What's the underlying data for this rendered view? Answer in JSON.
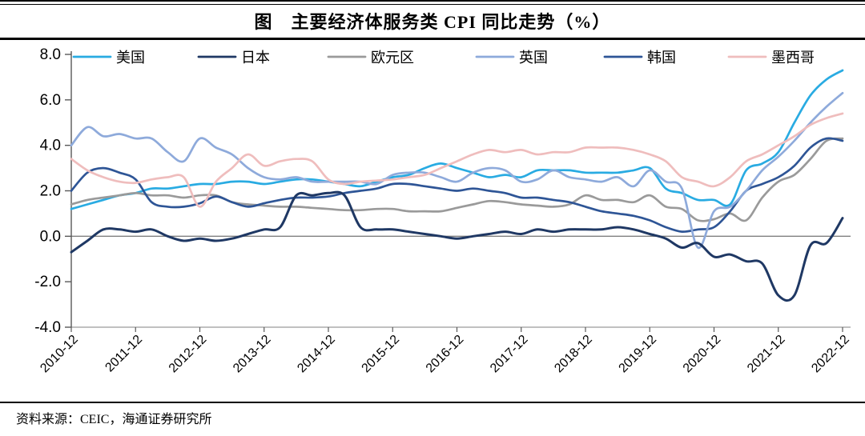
{
  "header": {
    "title": "图　主要经济体服务类 CPI 同比走势（%）"
  },
  "footer": {
    "source_label": "资料来源：CEIC，海通证券研究所"
  },
  "chart_data": {
    "type": "line",
    "title": "图　主要经济体服务类 CPI 同比走势（%）",
    "xlabel": "",
    "ylabel": "",
    "ylim": [
      -4.0,
      8.0
    ],
    "y_ticks": [
      8.0,
      6.0,
      4.0,
      2.0,
      0.0,
      -2.0,
      -4.0
    ],
    "y_tick_labels": [
      "8.0",
      "6.0",
      "4.0",
      "2.0",
      "0.0",
      "-2.0",
      "-4.0"
    ],
    "grid": "zero-line-only",
    "legend_position": "top-inside",
    "x": [
      "2010-12",
      "2011-03",
      "2011-06",
      "2011-09",
      "2011-12",
      "2012-03",
      "2012-06",
      "2012-09",
      "2012-12",
      "2013-03",
      "2013-06",
      "2013-09",
      "2013-12",
      "2014-03",
      "2014-06",
      "2014-09",
      "2014-12",
      "2015-03",
      "2015-06",
      "2015-09",
      "2015-12",
      "2016-03",
      "2016-06",
      "2016-09",
      "2016-12",
      "2017-03",
      "2017-06",
      "2017-09",
      "2017-12",
      "2018-03",
      "2018-06",
      "2018-09",
      "2018-12",
      "2019-03",
      "2019-06",
      "2019-09",
      "2019-12",
      "2020-03",
      "2020-06",
      "2020-09",
      "2020-12",
      "2021-03",
      "2021-06",
      "2021-09",
      "2021-12",
      "2022-03",
      "2022-06",
      "2022-09",
      "2022-12"
    ],
    "x_tick_labels": [
      "2010-12",
      "2011-12",
      "2012-12",
      "2013-12",
      "2014-12",
      "2015-12",
      "2016-12",
      "2017-12",
      "2018-12",
      "2019-12",
      "2020-12",
      "2021-12",
      "2022-12"
    ],
    "series": [
      {
        "name": "美国",
        "color": "#29ABE2",
        "values": [
          1.2,
          1.4,
          1.6,
          1.8,
          1.9,
          2.1,
          2.1,
          2.2,
          2.3,
          2.3,
          2.4,
          2.4,
          2.3,
          2.4,
          2.5,
          2.5,
          2.4,
          2.3,
          2.2,
          2.4,
          2.6,
          2.7,
          3.0,
          3.2,
          3.0,
          2.8,
          2.6,
          2.7,
          2.6,
          2.9,
          2.9,
          2.9,
          2.8,
          2.8,
          2.8,
          2.9,
          3.0,
          2.1,
          1.9,
          1.6,
          1.6,
          1.4,
          2.9,
          3.2,
          3.7,
          5.0,
          6.2,
          6.9,
          7.3
        ]
      },
      {
        "name": "日本",
        "color": "#1F3864",
        "values": [
          -0.7,
          -0.2,
          0.3,
          0.3,
          0.2,
          0.3,
          0.0,
          -0.2,
          -0.1,
          -0.2,
          -0.1,
          0.1,
          0.3,
          0.4,
          1.8,
          1.8,
          1.9,
          1.8,
          0.4,
          0.3,
          0.3,
          0.2,
          0.1,
          0.0,
          -0.1,
          0.0,
          0.1,
          0.2,
          0.1,
          0.3,
          0.2,
          0.3,
          0.3,
          0.3,
          0.4,
          0.3,
          0.1,
          -0.1,
          -0.5,
          -0.3,
          -0.9,
          -0.8,
          -1.1,
          -1.2,
          -2.6,
          -2.6,
          -0.4,
          -0.3,
          0.8
        ]
      },
      {
        "name": "欧元区",
        "color": "#9A9A9A",
        "values": [
          1.4,
          1.6,
          1.7,
          1.8,
          1.9,
          1.8,
          1.8,
          1.7,
          1.8,
          1.8,
          1.5,
          1.4,
          1.35,
          1.3,
          1.3,
          1.25,
          1.2,
          1.15,
          1.15,
          1.2,
          1.2,
          1.1,
          1.1,
          1.1,
          1.25,
          1.4,
          1.55,
          1.5,
          1.4,
          1.35,
          1.3,
          1.4,
          1.8,
          1.6,
          1.6,
          1.5,
          1.8,
          1.3,
          1.2,
          0.7,
          0.75,
          1.0,
          0.7,
          1.7,
          2.4,
          2.7,
          3.4,
          4.2,
          4.3
        ]
      },
      {
        "name": "英国",
        "color": "#8EAADB",
        "values": [
          4.0,
          4.8,
          4.4,
          4.5,
          4.3,
          4.3,
          3.7,
          3.3,
          4.3,
          3.9,
          3.6,
          3.0,
          2.6,
          2.5,
          2.6,
          2.4,
          2.4,
          2.4,
          2.4,
          2.3,
          2.7,
          2.8,
          2.8,
          2.6,
          2.4,
          2.8,
          3.0,
          2.9,
          2.4,
          2.5,
          2.9,
          2.6,
          2.5,
          2.4,
          2.6,
          2.2,
          2.9,
          2.4,
          2.1,
          -0.5,
          1.1,
          1.3,
          2.0,
          2.9,
          3.5,
          4.2,
          5.0,
          5.7,
          6.3
        ]
      },
      {
        "name": "韩国",
        "color": "#2E5596",
        "values": [
          2.0,
          2.8,
          3.0,
          2.8,
          2.5,
          1.5,
          1.3,
          1.3,
          1.45,
          1.75,
          1.5,
          1.3,
          1.45,
          1.6,
          1.7,
          1.7,
          1.75,
          1.9,
          2.0,
          2.1,
          2.3,
          2.3,
          2.2,
          2.1,
          2.0,
          2.1,
          2.0,
          1.9,
          1.7,
          1.7,
          1.6,
          1.5,
          1.3,
          1.1,
          1.0,
          0.9,
          0.7,
          0.4,
          0.2,
          0.3,
          0.4,
          1.1,
          2.0,
          2.3,
          2.6,
          3.1,
          3.9,
          4.3,
          4.2
        ]
      },
      {
        "name": "墨西哥",
        "color": "#EFBDBD",
        "values": [
          3.4,
          2.9,
          2.6,
          2.4,
          2.35,
          2.5,
          2.6,
          2.6,
          1.3,
          2.4,
          3.0,
          3.6,
          3.1,
          3.3,
          3.4,
          3.3,
          2.5,
          2.3,
          2.4,
          2.45,
          2.5,
          2.6,
          2.7,
          3.0,
          3.3,
          3.6,
          3.8,
          3.7,
          3.8,
          3.6,
          3.7,
          3.7,
          3.9,
          3.9,
          3.9,
          3.8,
          3.6,
          3.3,
          2.6,
          2.4,
          2.2,
          2.6,
          3.3,
          3.6,
          4.0,
          4.4,
          4.9,
          5.2,
          5.4
        ]
      }
    ]
  }
}
